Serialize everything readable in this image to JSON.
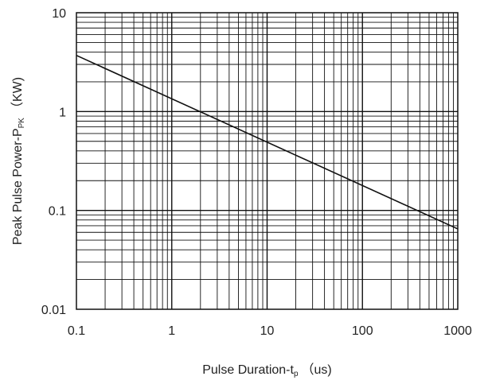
{
  "chart_data": {
    "type": "line",
    "title": "",
    "xlabel": {
      "main": "Pulse Duration-t",
      "subscript": "p",
      "unit": "（us)"
    },
    "ylabel": {
      "main": "Peak Pulse Power-P",
      "subscript": "PK",
      "unit": "（KW)"
    },
    "xscale": "log",
    "yscale": "log",
    "xlim": [
      0.1,
      1000
    ],
    "ylim": [
      0.01,
      10
    ],
    "x_ticks": [
      0.1,
      1,
      10,
      100,
      1000
    ],
    "x_tick_labels": [
      "0.1",
      "1",
      "10",
      "100",
      "1000"
    ],
    "y_ticks": [
      0.01,
      0.1,
      1,
      10
    ],
    "y_tick_labels": [
      "0.01",
      "0.1",
      "1",
      "10"
    ],
    "grid": true,
    "series": [
      {
        "x": [
          0.1,
          1000
        ],
        "y": [
          3.7,
          0.065
        ]
      }
    ],
    "colors": {
      "line": "#111111",
      "grid": "#111111",
      "frame": "#111111"
    }
  }
}
